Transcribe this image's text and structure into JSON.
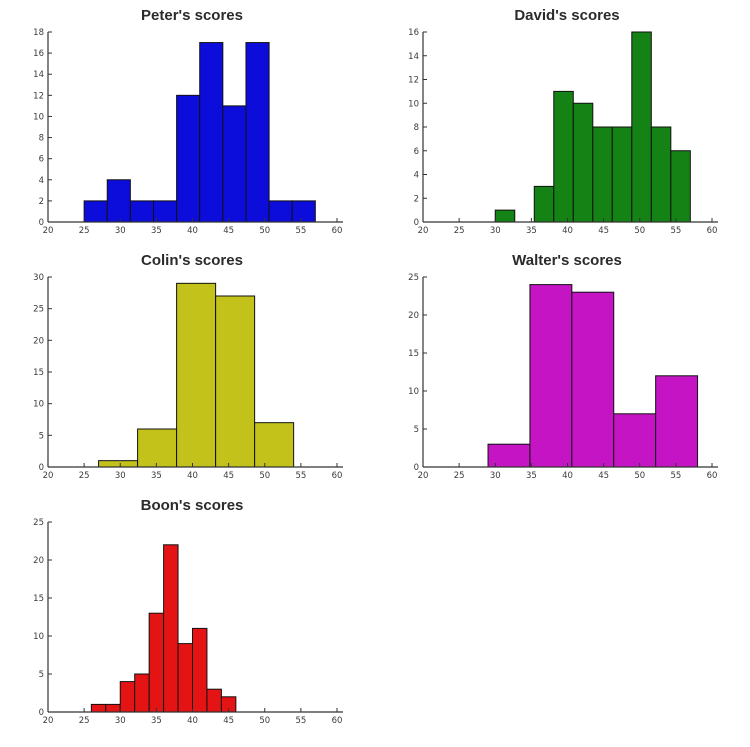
{
  "page": {
    "background": "#ffffff",
    "spine_color": "#333333",
    "bar_edge_color": "#111111",
    "tick_label_color": "#3a3a3a",
    "title_color": "#2b2b2b"
  },
  "chart_data": [
    {
      "type": "bar",
      "title": "Peter's scores",
      "color": "#0d0ddb",
      "bin_start": 25,
      "bin_width": 3.2,
      "counts": [
        2,
        4,
        2,
        2,
        12,
        17,
        11,
        17,
        2,
        2
      ],
      "xlim": [
        20,
        60
      ],
      "xticks": [
        20,
        25,
        30,
        35,
        40,
        45,
        50,
        55,
        60
      ],
      "ylim": [
        0,
        18
      ],
      "yticks": [
        0,
        2,
        4,
        6,
        8,
        10,
        12,
        14,
        16,
        18
      ],
      "grid": false,
      "legend": null
    },
    {
      "type": "bar",
      "title": "David's scores",
      "color": "#148214",
      "bin_start": 30,
      "bin_width": 2.7,
      "counts": [
        1,
        0,
        3,
        11,
        10,
        8,
        8,
        16,
        8,
        6
      ],
      "xlim": [
        20,
        60
      ],
      "xticks": [
        20,
        25,
        30,
        35,
        40,
        45,
        50,
        55,
        60
      ],
      "ylim": [
        0,
        16
      ],
      "yticks": [
        0,
        2,
        4,
        6,
        8,
        10,
        12,
        14,
        16
      ],
      "grid": false,
      "legend": null
    },
    {
      "type": "bar",
      "title": "Colin's scores",
      "color": "#c2c21b",
      "bin_start": 27,
      "bin_width": 5.4,
      "counts": [
        1,
        6,
        29,
        27,
        7
      ],
      "xlim": [
        20,
        60
      ],
      "xticks": [
        20,
        25,
        30,
        35,
        40,
        45,
        50,
        55,
        60
      ],
      "ylim": [
        0,
        30
      ],
      "yticks": [
        0,
        5,
        10,
        15,
        20,
        25,
        30
      ],
      "grid": false,
      "legend": null
    },
    {
      "type": "bar",
      "title": "Walter's scores",
      "color": "#c414c4",
      "bin_start": 29,
      "bin_width": 5.8,
      "counts": [
        3,
        24,
        23,
        7,
        12
      ],
      "xlim": [
        20,
        60
      ],
      "xticks": [
        20,
        25,
        30,
        35,
        40,
        45,
        50,
        55,
        60
      ],
      "ylim": [
        0,
        25
      ],
      "yticks": [
        0,
        5,
        10,
        15,
        20,
        25
      ],
      "grid": false,
      "legend": null
    },
    {
      "type": "bar",
      "title": "Boon's scores",
      "color": "#e41414",
      "bin_start": 26,
      "bin_width": 2.0,
      "counts": [
        1,
        1,
        4,
        5,
        13,
        22,
        9,
        11,
        3,
        2
      ],
      "xlim": [
        20,
        60
      ],
      "xticks": [
        20,
        25,
        30,
        35,
        40,
        45,
        50,
        55,
        60
      ],
      "ylim": [
        0,
        25
      ],
      "yticks": [
        0,
        5,
        10,
        15,
        20,
        25
      ],
      "grid": false,
      "legend": null
    }
  ]
}
